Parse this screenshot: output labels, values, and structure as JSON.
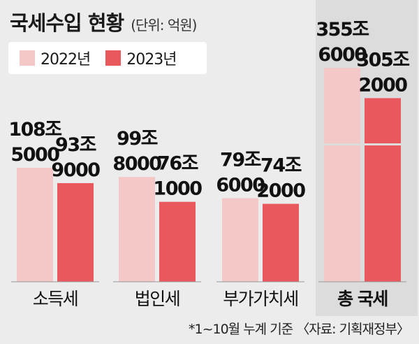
{
  "header": {
    "title": "국세수입 현황",
    "unit": "(단위: 억원)"
  },
  "legend": [
    {
      "label": "2022년",
      "color": "#f5c8c8"
    },
    {
      "label": "2023년",
      "color": "#e8585d"
    }
  ],
  "chart_data": {
    "type": "bar",
    "title": "국세수입 현황",
    "unit": "(단위: 억원)",
    "categories": [
      "소득세",
      "법인세",
      "부가가치세",
      "총 국세"
    ],
    "series": [
      {
        "name": "2022년",
        "color": "#f5c8c8",
        "values": [
          1085000,
          998000,
          796000,
          3556000
        ],
        "labels": [
          [
            "108조",
            "5000"
          ],
          [
            "99조",
            "8000"
          ],
          [
            "79조",
            "6000"
          ],
          [
            "355조",
            "6000"
          ]
        ]
      },
      {
        "name": "2023년",
        "color": "#e8585d",
        "values": [
          939000,
          761000,
          742000,
          3052000
        ],
        "labels": [
          [
            "93조",
            "9000"
          ],
          [
            "76조",
            "1000"
          ],
          [
            "74조",
            "2000"
          ],
          [
            "305조",
            "2000"
          ]
        ]
      }
    ],
    "note": "총 국세 bars drawn with a broken (truncated) scale"
  },
  "footnote": "*1~10월 누계 기준 〈자료: 기획재정부〉"
}
